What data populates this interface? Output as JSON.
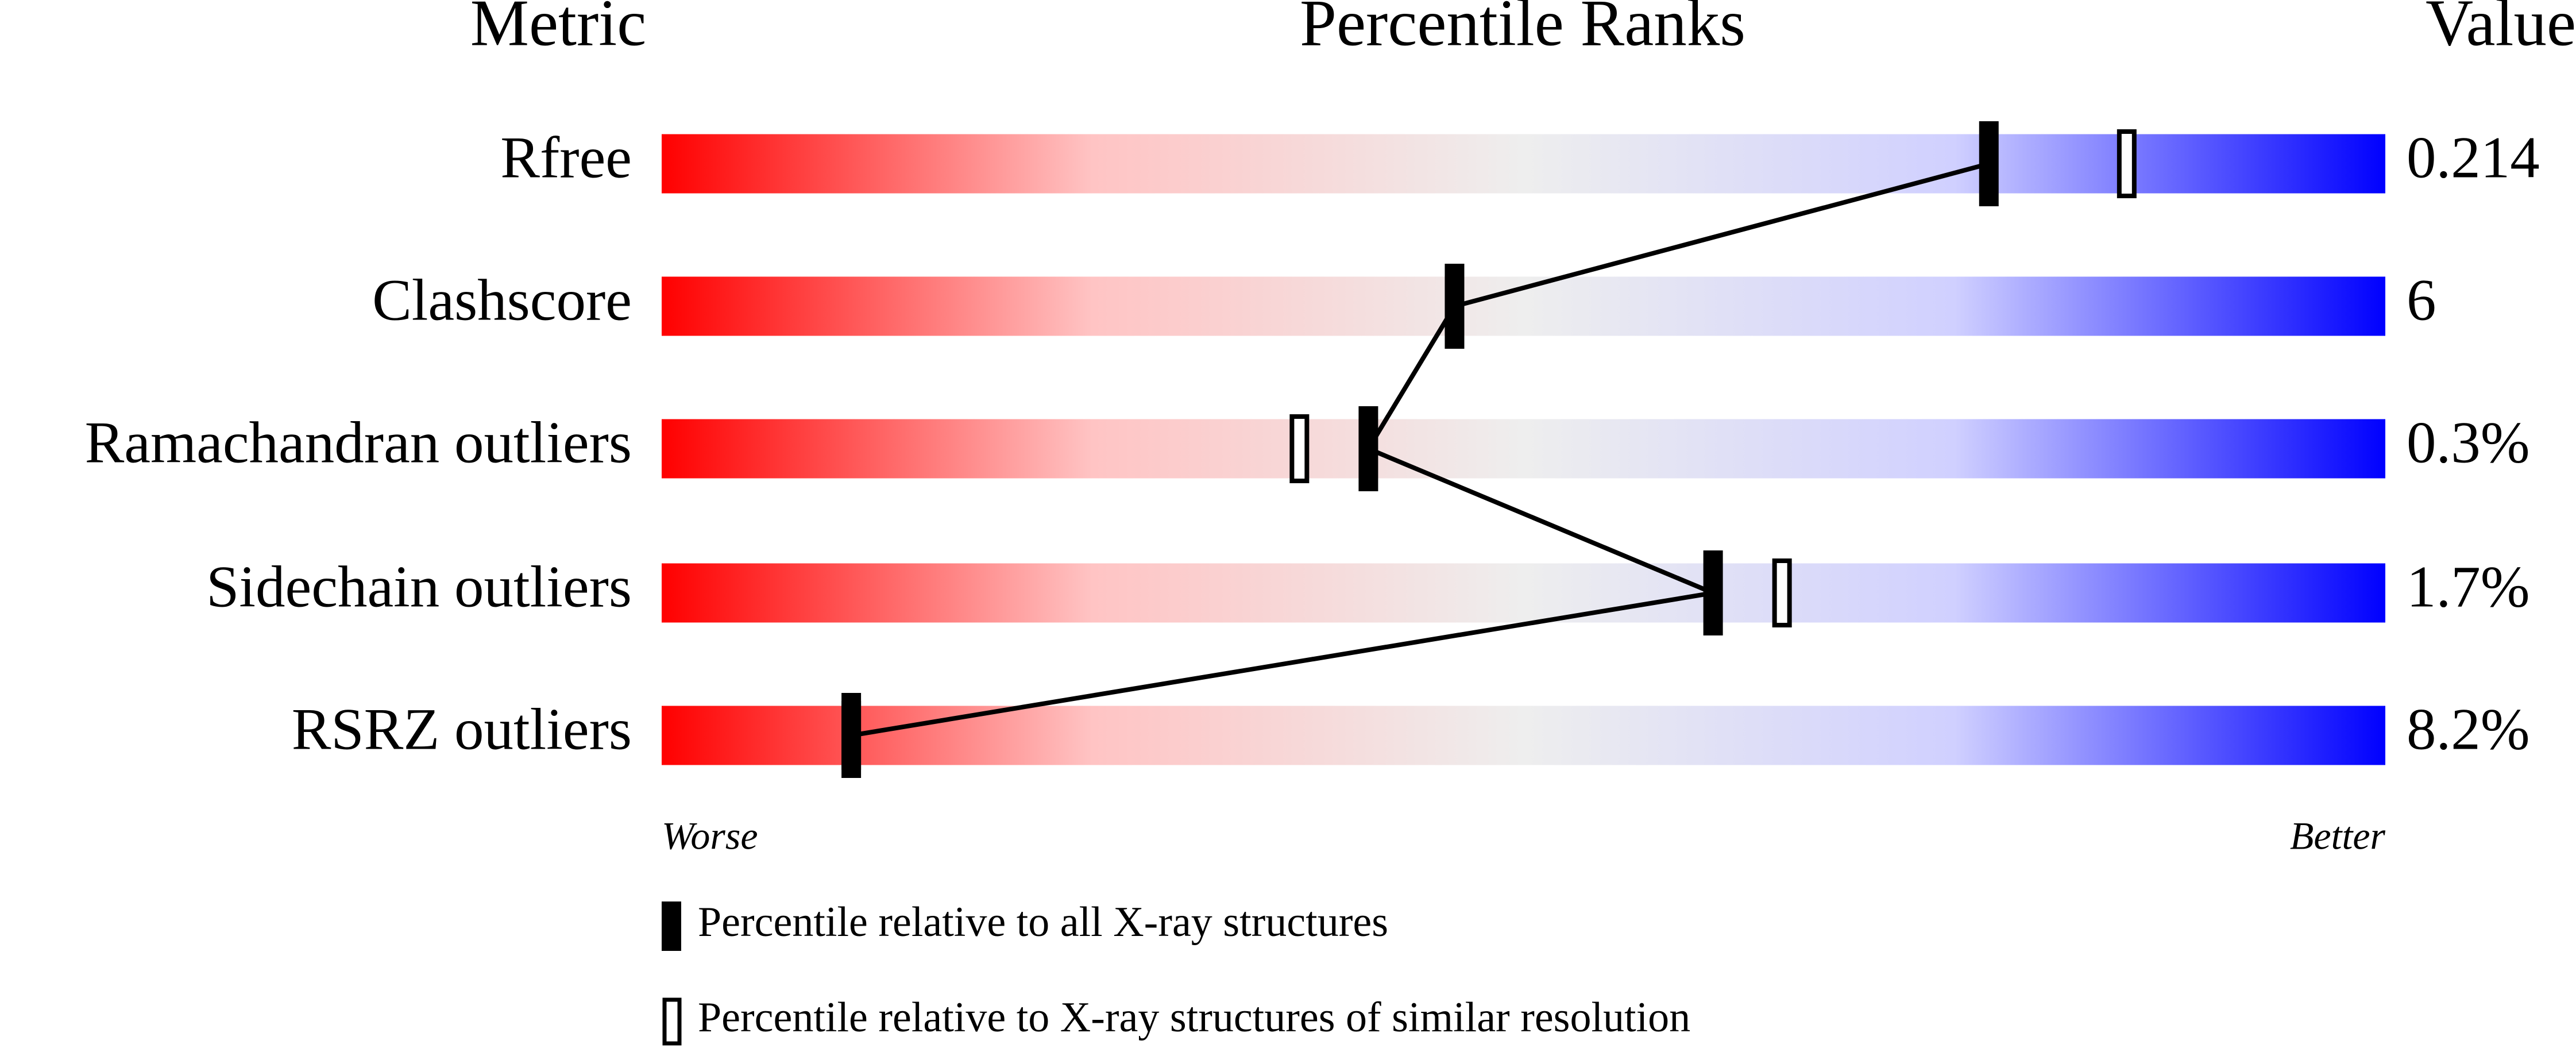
{
  "chart_data": {
    "type": "percentile-slider",
    "column_headers": [
      "Metric",
      "Percentile Ranks",
      "Value"
    ],
    "categories": [
      "Rfree",
      "Clashscore",
      "Ramachandran outliers",
      "Sidechain outliers",
      "RSRZ outliers"
    ],
    "value_column": [
      "0.214",
      "6",
      "0.3%",
      "1.7%",
      "8.2%"
    ],
    "xlim": [
      0,
      100
    ],
    "axis_end_labels": [
      "Worse",
      "Better"
    ],
    "gradient": [
      "#ff0000",
      "#ffc4c4",
      "#eeeeee",
      "#d0d0ff",
      "#0000ff"
    ],
    "series": [
      {
        "name": "Percentile relative to all X-ray structures",
        "color": "#000000",
        "marker": "filled",
        "connect": true,
        "values": [
          77,
          46,
          41,
          61,
          11
        ]
      },
      {
        "name": "Percentile relative to X-ray structures of similar resolution",
        "color": "#000000",
        "marker": "hollow",
        "connect": false,
        "values": [
          85,
          null,
          37,
          65,
          11
        ]
      }
    ]
  }
}
